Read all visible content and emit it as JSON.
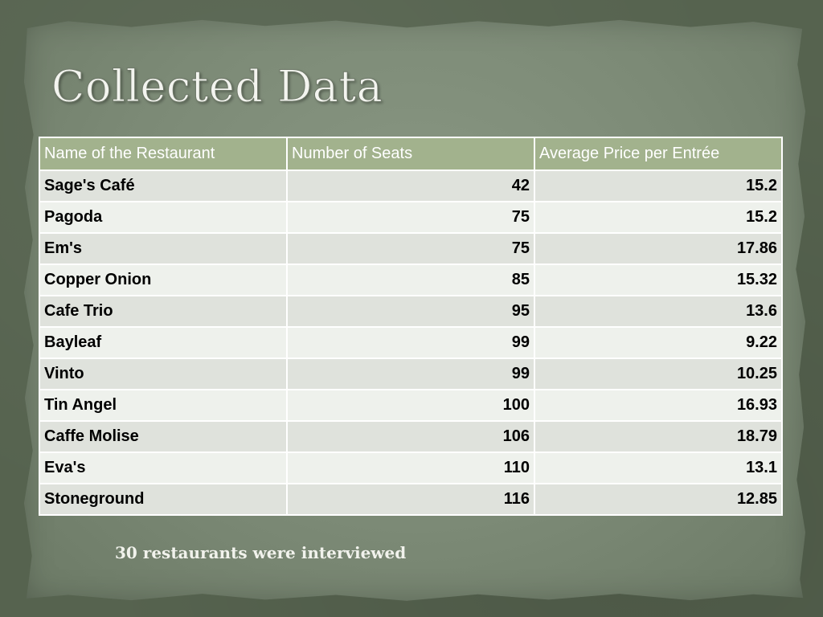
{
  "slide": {
    "title": "Collected Data",
    "footnote": "30 restaurants were interviewed"
  },
  "table": {
    "headers": [
      "Name of the Restaurant",
      "Number of Seats",
      "Average Price per Entrée"
    ],
    "rows": [
      [
        "Sage's Café",
        "42",
        "15.2"
      ],
      [
        "Pagoda",
        "75",
        "15.2"
      ],
      [
        "Em's",
        "75",
        "17.86"
      ],
      [
        "Copper Onion",
        "85",
        "15.32"
      ],
      [
        "Cafe Trio",
        "95",
        "13.6"
      ],
      [
        "Bayleaf",
        "99",
        "9.22"
      ],
      [
        "Vinto",
        "99",
        "10.25"
      ],
      [
        "Tin Angel",
        "100",
        "16.93"
      ],
      [
        "Caffe Molise",
        "106",
        "18.79"
      ],
      [
        "Eva's",
        "110",
        "13.1"
      ],
      [
        "Stoneground",
        "116",
        "12.85"
      ]
    ]
  },
  "colors": {
    "background": "#56634f",
    "paper": "#7c8a76",
    "header_fill": "#a2b28d",
    "row_light": "#eef1ec",
    "row_dark": "#dfe2dc"
  }
}
